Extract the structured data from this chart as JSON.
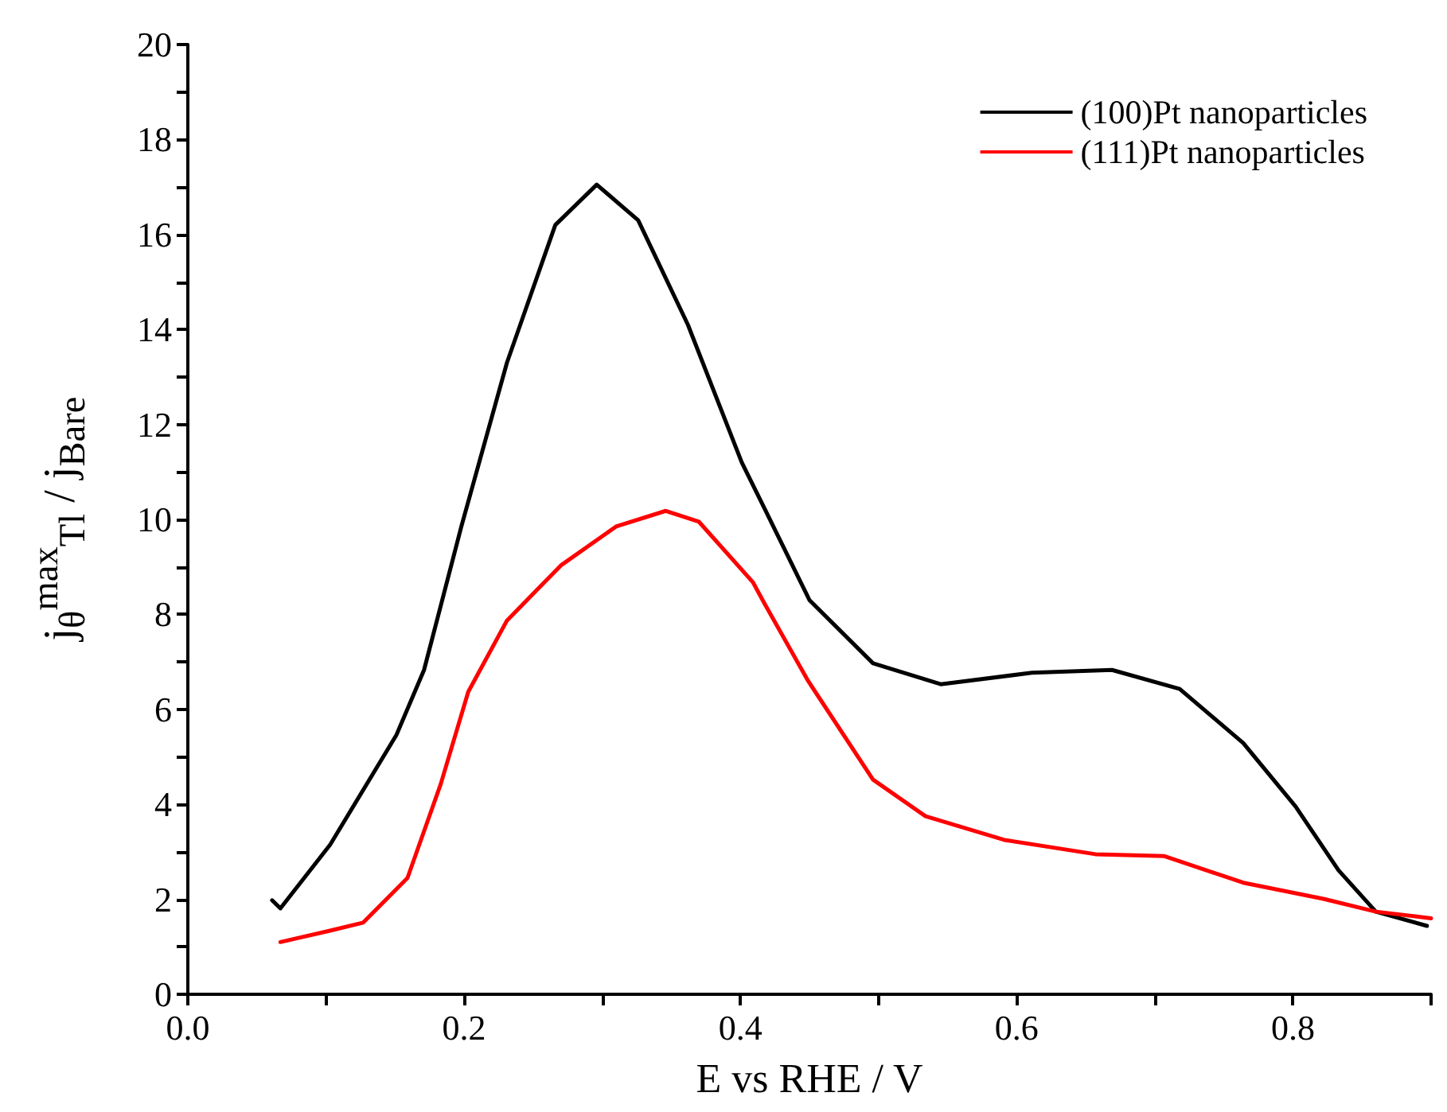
{
  "chart_data": {
    "type": "line",
    "xlabel": "E vs RHE / V",
    "ylabel": "j$_{θ}$$^{max}$$_{Tl}$ / j$_{Bare}$",
    "xlim": [
      0,
      0.9
    ],
    "xticks": [
      {
        "value": 0,
        "label": "0.0"
      },
      {
        "value": 0.1,
        "label": null
      },
      {
        "value": 0.2,
        "label": "0.2"
      },
      {
        "value": 0.3,
        "label": null
      },
      {
        "value": 0.4,
        "label": "0.4"
      },
      {
        "value": 0.5,
        "label": null
      },
      {
        "value": 0.6,
        "label": "0.6"
      },
      {
        "value": 0.7,
        "label": null
      },
      {
        "value": 0.8,
        "label": "0.8"
      },
      {
        "value": 0.9,
        "label": null
      }
    ],
    "ylim": [
      0,
      20
    ],
    "yticks": [
      0,
      {
        "value": 1,
        "label": null
      },
      2,
      {
        "value": 3,
        "label": null
      },
      4,
      {
        "value": 5,
        "label": null
      },
      6,
      {
        "value": 7,
        "label": null
      },
      8,
      {
        "value": 9,
        "label": null
      },
      10,
      {
        "value": 11,
        "label": null
      },
      12,
      {
        "value": 13,
        "label": null
      },
      14,
      {
        "value": 15,
        "label": null
      },
      16,
      {
        "value": 17,
        "label": null
      },
      18,
      {
        "value": 19,
        "label": null
      },
      20
    ],
    "grid": false,
    "legend": "top right",
    "marker": "none",
    "line_style": "solid",
    "series": [
      {
        "name": "(100)Pt nanoparticles",
        "color": "#000000",
        "x": [
          0.061,
          0.067,
          0.103,
          0.151,
          0.171,
          0.198,
          0.231,
          0.266,
          0.296,
          0.326,
          0.362,
          0.401,
          0.418,
          0.45,
          0.496,
          0.545,
          0.611,
          0.669,
          0.718,
          0.764,
          0.802,
          0.833,
          0.86,
          0.897
        ],
        "values": [
          1.98,
          1.81,
          3.15,
          5.46,
          6.83,
          9.85,
          13.3,
          16.2,
          17.05,
          16.3,
          14.1,
          11.2,
          10.2,
          8.3,
          6.97,
          6.53,
          6.77,
          6.83,
          6.43,
          5.29,
          3.95,
          2.61,
          1.74,
          1.44
        ]
      },
      {
        "name": "(111)Pt nanoparticles",
        "color": "#ff0000",
        "x": [
          0.067,
          0.103,
          0.127,
          0.159,
          0.183,
          0.203,
          0.231,
          0.27,
          0.31,
          0.346,
          0.37,
          0.409,
          0.418,
          0.449,
          0.496,
          0.534,
          0.591,
          0.657,
          0.707,
          0.764,
          0.822,
          0.86,
          0.9
        ],
        "values": [
          1.1,
          1.34,
          1.51,
          2.45,
          4.42,
          6.37,
          7.87,
          9.03,
          9.85,
          10.18,
          9.95,
          8.68,
          8.2,
          6.6,
          4.52,
          3.75,
          3.25,
          2.95,
          2.91,
          2.35,
          2.01,
          1.74,
          1.6
        ]
      }
    ]
  }
}
